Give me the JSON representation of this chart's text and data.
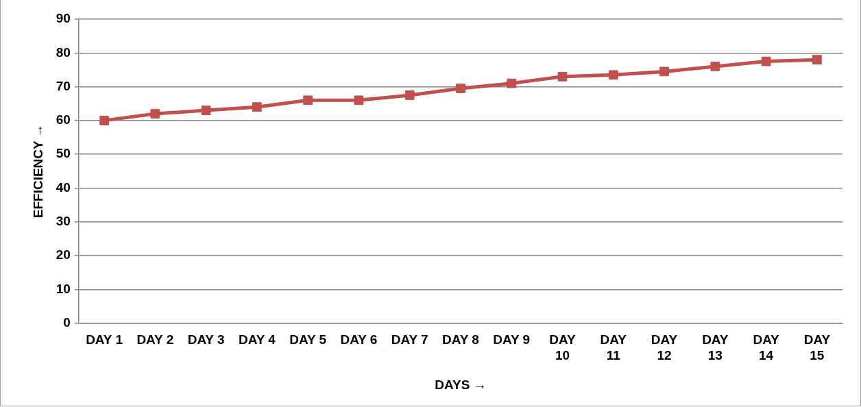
{
  "chart_data": {
    "type": "line",
    "xlabel": "DAYS →",
    "ylabel": "EFFICIENCY →",
    "categories": [
      "DAY 1",
      "DAY 2",
      "DAY 3",
      "DAY 4",
      "DAY 5",
      "DAY 6",
      "DAY 7",
      "DAY 8",
      "DAY 9",
      "DAY 10",
      "DAY 11",
      "DAY 12",
      "DAY 13",
      "DAY 14",
      "DAY 15"
    ],
    "series": [
      {
        "color": "#c0504d",
        "values": [
          60,
          62,
          63,
          64,
          66,
          66,
          67.5,
          69.5,
          71,
          73,
          73.5,
          74.5,
          76,
          77.5,
          78
        ]
      }
    ],
    "ylim": [
      0,
      90
    ],
    "yticks": [
      0,
      10,
      20,
      30,
      40,
      50,
      60,
      70,
      80,
      90
    ],
    "grid": "y",
    "legend": false,
    "marker": "square",
    "line_style": "solid"
  }
}
